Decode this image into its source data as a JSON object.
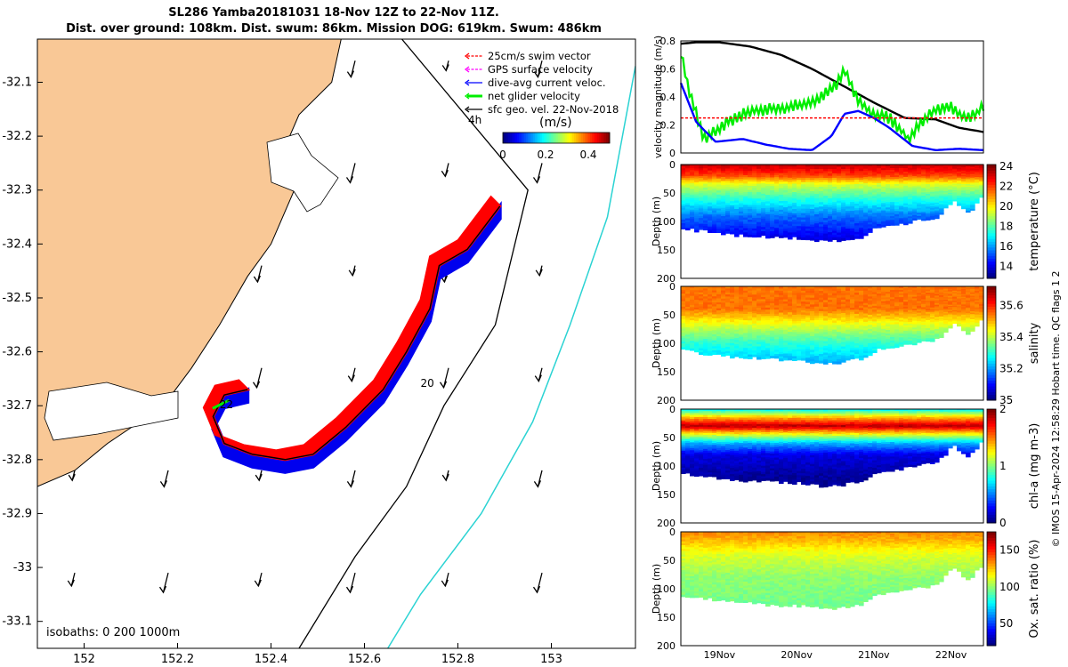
{
  "header": {
    "line1": "SL286 Yamba20181031 18-Nov 12Z to 22-Nov 11Z.",
    "line2": "Dist. over ground: 108km. Dist. swum: 86km. Mission DOG: 619km. Swum: 486km"
  },
  "credit": "© IMOS 15-Apr-2024 12:58:29 Hobart time. QC flags 1  2",
  "chart_data": [
    {
      "type": "scatter",
      "kind": "map",
      "xlim": [
        151.9,
        153.18
      ],
      "ylim": [
        -33.15,
        -32.02
      ],
      "xticks": [
        152,
        152.2,
        152.4,
        152.6,
        152.8,
        153
      ],
      "xtick_labels": [
        "152",
        "152.2",
        "152.4",
        "152.6",
        "152.8",
        "153"
      ],
      "yticks": [
        -32.1,
        -32.2,
        -32.3,
        -32.4,
        -32.5,
        -32.6,
        -32.7,
        -32.8,
        -32.9,
        -33,
        -33.1
      ],
      "ytick_labels": [
        "-32.1",
        "-32.2",
        "-32.3",
        "-32.4",
        "-32.5",
        "-32.6",
        "-32.7",
        "-32.8",
        "-32.9",
        "-33",
        "-33.1"
      ],
      "legend": [
        {
          "label": "25cm/s swim vector",
          "color": "#ff0000"
        },
        {
          "label": "GPS surface velocity",
          "color": "#ff00ff"
        },
        {
          "label": "dive-avg current veloc.",
          "color": "#0000ff"
        },
        {
          "label": "net glider velocity",
          "color": "#00ee00"
        },
        {
          "label": "sfc geo. vel. 22-Nov-2018",
          "color": "#000000"
        }
      ],
      "legend_position": "top-right",
      "colorbar": {
        "label": "(m/s)",
        "ticks": [
          "0",
          "0.2",
          "0.4"
        ],
        "range": [
          0,
          0.5
        ]
      },
      "scale_label": "4h",
      "isobath_label": "isobaths: 0   200  1000m",
      "track_labels": [
        {
          "text": "22",
          "lon": 152.29,
          "lat": -32.705
        },
        {
          "text": "20",
          "lon": 152.72,
          "lat": -32.665
        }
      ],
      "track": [
        {
          "lon": 152.89,
          "lat": -32.33
        },
        {
          "lon": 152.82,
          "lat": -32.41
        },
        {
          "lon": 152.76,
          "lat": -32.44
        },
        {
          "lon": 152.74,
          "lat": -32.52
        },
        {
          "lon": 152.69,
          "lat": -32.6
        },
        {
          "lon": 152.64,
          "lat": -32.67
        },
        {
          "lon": 152.56,
          "lat": -32.74
        },
        {
          "lon": 152.49,
          "lat": -32.79
        },
        {
          "lon": 152.43,
          "lat": -32.8
        },
        {
          "lon": 152.36,
          "lat": -32.79
        },
        {
          "lon": 152.3,
          "lat": -32.77
        },
        {
          "lon": 152.276,
          "lat": -32.72
        },
        {
          "lon": 152.3,
          "lat": -32.68
        },
        {
          "lon": 152.35,
          "lat": -32.67
        }
      ],
      "isobath_200": [
        {
          "lon": 152.68,
          "lat": -32.02
        },
        {
          "lon": 152.95,
          "lat": -32.3
        },
        {
          "lon": 152.88,
          "lat": -32.55
        },
        {
          "lon": 152.77,
          "lat": -32.7
        },
        {
          "lon": 152.69,
          "lat": -32.85
        },
        {
          "lon": 152.58,
          "lat": -32.98
        },
        {
          "lon": 152.46,
          "lat": -33.15
        }
      ],
      "isobath_1000": [
        {
          "lon": 153.18,
          "lat": -32.07
        },
        {
          "lon": 153.12,
          "lat": -32.35
        },
        {
          "lon": 153.04,
          "lat": -32.55
        },
        {
          "lon": 152.96,
          "lat": -32.73
        },
        {
          "lon": 152.85,
          "lat": -32.9
        },
        {
          "lon": 152.72,
          "lat": -33.05
        },
        {
          "lon": 152.65,
          "lat": -33.15
        }
      ],
      "coast": [
        {
          "lon": 152.55,
          "lat": -32.02
        },
        {
          "lon": 152.53,
          "lat": -32.1
        },
        {
          "lon": 152.46,
          "lat": -32.16
        },
        {
          "lon": 152.43,
          "lat": -32.22
        },
        {
          "lon": 152.45,
          "lat": -32.3
        },
        {
          "lon": 152.4,
          "lat": -32.4
        },
        {
          "lon": 152.35,
          "lat": -32.46
        },
        {
          "lon": 152.29,
          "lat": -32.55
        },
        {
          "lon": 152.23,
          "lat": -32.63
        },
        {
          "lon": 152.17,
          "lat": -32.7
        },
        {
          "lon": 152.05,
          "lat": -32.77
        },
        {
          "lon": 151.98,
          "lat": -32.82
        },
        {
          "lon": 151.9,
          "lat": -32.85
        }
      ]
    },
    {
      "type": "line",
      "ylabel": "velocity magnitude (m/s)",
      "ylim": [
        0,
        0.8
      ],
      "yticks": [
        0,
        0.2,
        0.4,
        0.6,
        0.8
      ],
      "xlim": [
        18.5,
        22.42
      ],
      "series": [
        {
          "color": "#000000",
          "x": [
            18.5,
            18.7,
            19.0,
            19.4,
            19.8,
            20.2,
            20.6,
            21.0,
            21.4,
            21.8,
            22.1,
            22.42
          ],
          "values": [
            0.78,
            0.79,
            0.79,
            0.76,
            0.7,
            0.6,
            0.48,
            0.36,
            0.25,
            0.24,
            0.18,
            0.15
          ]
        },
        {
          "color": "#00ee00",
          "x": [
            18.5,
            18.62,
            18.8,
            19.1,
            19.4,
            19.8,
            20.2,
            20.5,
            20.62,
            20.8,
            21.0,
            21.2,
            21.45,
            21.6,
            21.8,
            22.0,
            22.2,
            22.42
          ],
          "values": [
            0.7,
            0.42,
            0.1,
            0.22,
            0.3,
            0.32,
            0.36,
            0.48,
            0.6,
            0.36,
            0.28,
            0.25,
            0.1,
            0.22,
            0.3,
            0.32,
            0.24,
            0.32
          ]
        },
        {
          "color": "#0000ff",
          "x": [
            18.5,
            18.7,
            18.95,
            19.3,
            19.6,
            19.9,
            20.2,
            20.45,
            20.62,
            20.8,
            21.0,
            21.2,
            21.5,
            21.8,
            22.1,
            22.42
          ],
          "values": [
            0.5,
            0.22,
            0.08,
            0.1,
            0.06,
            0.03,
            0.02,
            0.12,
            0.28,
            0.3,
            0.25,
            0.18,
            0.05,
            0.02,
            0.03,
            0.02
          ]
        },
        {
          "color": "#ff0000",
          "x": [
            18.5,
            22.42
          ],
          "values": [
            0.25,
            0.25
          ]
        }
      ]
    },
    {
      "type": "heatmap",
      "ylabel": "Depth (m)",
      "cbar_label": "temperature (°C)",
      "cbar_ticks": [
        14,
        16,
        18,
        20,
        22,
        24
      ],
      "clim": [
        12.8,
        24.2
      ],
      "ylim": [
        0,
        200
      ],
      "yticks": [
        0,
        50,
        100,
        150,
        200
      ],
      "x": [
        18.5,
        18.8,
        19.2,
        19.6,
        20.0,
        20.4,
        20.8,
        21.0,
        21.2,
        21.5,
        21.8,
        22.0,
        22.2,
        22.42
      ],
      "bottom_depth": [
        112,
        118,
        124,
        128,
        130,
        136,
        128,
        112,
        108,
        100,
        94,
        64,
        84,
        52
      ],
      "layers": [
        {
          "depth": 0,
          "value": 23.5
        },
        {
          "depth": 20,
          "value": 22.0
        },
        {
          "depth": 35,
          "value": 19.5
        },
        {
          "depth": 60,
          "value": 17.5
        },
        {
          "depth": 90,
          "value": 15.5
        },
        {
          "depth": 140,
          "value": 13.5
        }
      ]
    },
    {
      "type": "heatmap",
      "ylabel": "Depth (m)",
      "cbar_label": "salinity",
      "cbar_ticks": [
        35,
        35.2,
        35.4,
        35.6
      ],
      "clim": [
        35.0,
        35.72
      ],
      "ylim": [
        0,
        200
      ],
      "yticks": [
        0,
        50,
        100,
        150,
        200
      ],
      "x": [
        18.5,
        18.8,
        19.2,
        19.6,
        20.0,
        20.4,
        20.8,
        21.0,
        21.2,
        21.5,
        21.8,
        22.0,
        22.2,
        22.42
      ],
      "bottom_depth": [
        112,
        118,
        124,
        128,
        130,
        136,
        128,
        112,
        108,
        100,
        94,
        64,
        84,
        52
      ],
      "layers": [
        {
          "depth": 0,
          "value": 35.55
        },
        {
          "depth": 40,
          "value": 35.55
        },
        {
          "depth": 70,
          "value": 35.42
        },
        {
          "depth": 100,
          "value": 35.3
        },
        {
          "depth": 140,
          "value": 35.2
        }
      ]
    },
    {
      "type": "heatmap",
      "ylabel": "Depth (m)",
      "cbar_label": "chl-a (mg m-3)",
      "cbar_ticks": [
        0,
        1,
        2
      ],
      "clim": [
        0,
        2
      ],
      "ylim": [
        0,
        200
      ],
      "yticks": [
        0,
        50,
        100,
        150,
        200
      ],
      "x": [
        18.5,
        18.8,
        19.2,
        19.6,
        20.0,
        20.4,
        20.8,
        21.0,
        21.2,
        21.5,
        21.8,
        22.0,
        22.2,
        22.42
      ],
      "bottom_depth": [
        112,
        118,
        124,
        128,
        130,
        136,
        128,
        112,
        108,
        100,
        94,
        64,
        84,
        52
      ],
      "layers": [
        {
          "depth": 0,
          "value": 0.7
        },
        {
          "depth": 15,
          "value": 1.4
        },
        {
          "depth": 30,
          "value": 1.9
        },
        {
          "depth": 45,
          "value": 1.2
        },
        {
          "depth": 60,
          "value": 0.6
        },
        {
          "depth": 80,
          "value": 0.2
        },
        {
          "depth": 120,
          "value": 0.05
        }
      ]
    },
    {
      "type": "heatmap",
      "ylabel": "Depth (m)",
      "cbar_label": "Ox. sat. ratio (%)",
      "cbar_ticks": [
        50,
        100,
        150
      ],
      "clim": [
        20,
        175
      ],
      "ylim": [
        0,
        200
      ],
      "yticks": [
        0,
        50,
        100,
        150,
        200
      ],
      "xticks": [
        19,
        20,
        21,
        22
      ],
      "xtick_labels": [
        "19Nov",
        "20Nov",
        "21Nov",
        "22Nov"
      ],
      "x": [
        18.5,
        18.8,
        19.2,
        19.6,
        20.0,
        20.4,
        20.8,
        21.0,
        21.2,
        21.5,
        21.8,
        22.0,
        22.2,
        22.42
      ],
      "bottom_depth": [
        112,
        118,
        124,
        128,
        130,
        136,
        128,
        112,
        108,
        100,
        94,
        64,
        84,
        52
      ],
      "layers": [
        {
          "depth": 0,
          "value": 135
        },
        {
          "depth": 15,
          "value": 128
        },
        {
          "depth": 40,
          "value": 112
        },
        {
          "depth": 80,
          "value": 100
        },
        {
          "depth": 130,
          "value": 95
        }
      ]
    }
  ]
}
